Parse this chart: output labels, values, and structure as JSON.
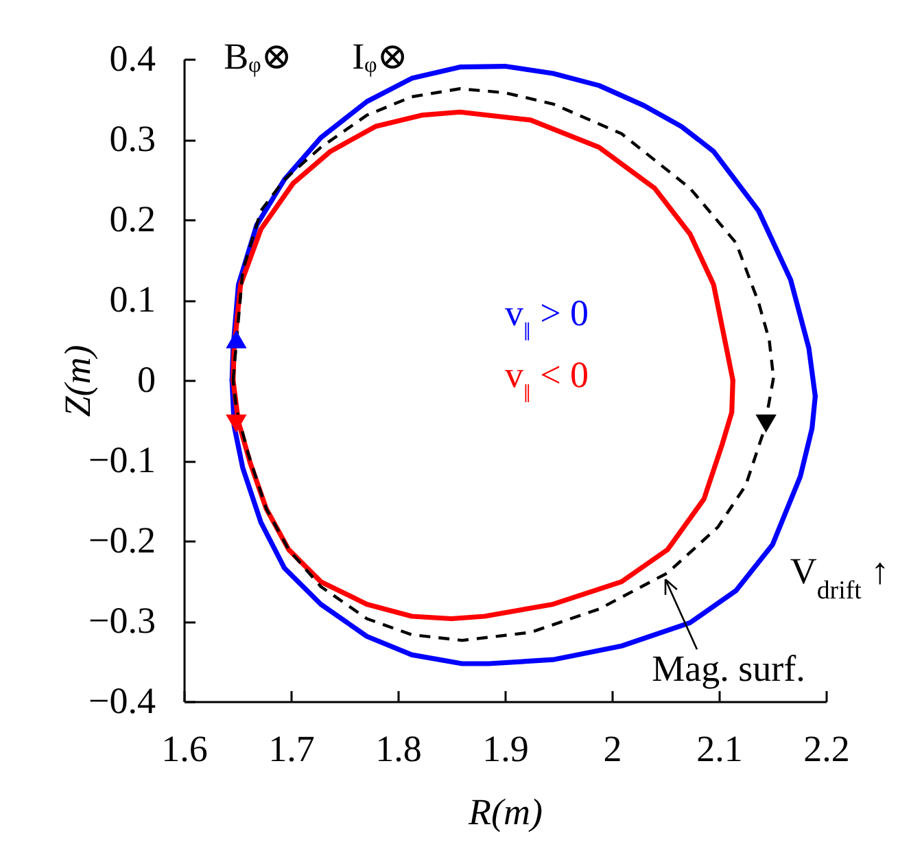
{
  "chart_data": {
    "type": "line",
    "xlabel": "R(m)",
    "ylabel": "Z(m)",
    "xlim": [
      1.6,
      2.2
    ],
    "xticks": [
      1.6,
      1.7,
      1.8,
      1.9,
      2,
      2.1,
      2.2
    ],
    "ylim": [
      -0.4,
      0.4
    ],
    "yticks": [
      -0.4,
      -0.3,
      -0.2,
      -0.1,
      0,
      0.1,
      0.2,
      0.3,
      0.4
    ],
    "grid": false,
    "series": [
      {
        "name": "v$_{‖}$ > 0",
        "color": "#0000ff",
        "x": [
          1.645,
          1.646,
          1.651,
          1.668,
          1.694,
          1.728,
          1.771,
          1.813,
          1.858,
          1.9,
          1.945,
          1.988,
          2.03,
          2.065,
          2.095,
          2.137,
          2.167,
          2.184,
          2.19
        ],
        "values": [
          0,
          0.04,
          0.119,
          0.193,
          0.25,
          0.302,
          0.347,
          0.376,
          0.39,
          0.391,
          0.382,
          0.367,
          0.342,
          0.316,
          0.285,
          0.211,
          0.125,
          0.04,
          -0.02
        ]
      },
      {
        "color": "#0000ff",
        "x": [
          2.19,
          2.187,
          2.176,
          2.15,
          2.116,
          2.073,
          2.009,
          1.945,
          1.885,
          1.86,
          1.813,
          1.771,
          1.728,
          1.694,
          1.672,
          1.655,
          1.647,
          1.645
        ],
        "values": [
          -0.02,
          -0.06,
          -0.12,
          -0.205,
          -0.262,
          -0.302,
          -0.331,
          -0.348,
          -0.353,
          -0.353,
          -0.342,
          -0.319,
          -0.279,
          -0.234,
          -0.177,
          -0.109,
          -0.057,
          0
        ]
      },
      {
        "name": "v$_{‖}$ < 0",
        "color": "#ff0000",
        "x": [
          1.646,
          1.647,
          1.653,
          1.672,
          1.702,
          1.737,
          1.779,
          1.822,
          1.858,
          1.924,
          1.988,
          2.04,
          2.073,
          2.095,
          2.107,
          2.113
        ],
        "values": [
          0,
          0.04,
          0.119,
          0.188,
          0.245,
          0.285,
          0.316,
          0.33,
          0.334,
          0.324,
          0.29,
          0.239,
          0.182,
          0.119,
          0.04,
          0
        ]
      },
      {
        "color": "#ff0000",
        "x": [
          2.113,
          2.112,
          2.103,
          2.086,
          2.052,
          2.009,
          1.945,
          1.881,
          1.85,
          1.813,
          1.771,
          1.728,
          1.698,
          1.677,
          1.662,
          1.651,
          1.646
        ],
        "values": [
          0,
          -0.04,
          -0.08,
          -0.148,
          -0.211,
          -0.251,
          -0.279,
          -0.294,
          -0.297,
          -0.294,
          -0.279,
          -0.251,
          -0.211,
          -0.16,
          -0.103,
          -0.052,
          0
        ]
      },
      {
        "color": "#000000",
        "line_style": "dashed",
        "x": [
          1.646,
          1.655,
          1.672,
          1.694,
          1.728,
          1.771,
          1.813,
          1.858,
          1.9,
          1.945,
          2.009,
          2.073,
          2.116,
          2.137,
          2.147,
          2.151
        ],
        "values": [
          0,
          0.136,
          0.211,
          0.25,
          0.29,
          0.33,
          0.353,
          0.363,
          0.358,
          0.344,
          0.307,
          0.239,
          0.171,
          0.097,
          0.05,
          0.003
        ]
      },
      {
        "color": "#000000",
        "line_style": "dashed",
        "x": [
          2.151,
          2.142,
          2.125,
          2.099,
          2.052,
          1.988,
          1.924,
          1.86,
          1.813,
          1.771,
          1.728,
          1.698,
          1.677,
          1.66,
          1.649,
          1.646
        ],
        "values": [
          0.003,
          -0.063,
          -0.131,
          -0.183,
          -0.24,
          -0.285,
          -0.314,
          -0.324,
          -0.317,
          -0.297,
          -0.257,
          -0.211,
          -0.16,
          -0.091,
          -0.035,
          0
        ]
      },
      {
        "type": "scatter",
        "marker": "triangle",
        "color": "#0000ff",
        "x": [
          1.649
        ],
        "values": [
          0.051
        ]
      },
      {
        "type": "scatter",
        "marker": "triangle-down",
        "color": "#ff0000",
        "x": [
          1.649
        ],
        "values": [
          -0.054
        ]
      },
      {
        "type": "scatter",
        "marker": "triangle-down",
        "color": "#000000",
        "x": [
          2.144
        ],
        "values": [
          -0.054
        ]
      }
    ],
    "annotations": [
      "Bᵩ⊗",
      "Iᵩ⊗",
      "V$_{drift}$ ↑",
      {
        "text": "Mag. surf.",
        "x": 2.05,
        "y": -0.248
      }
    ]
  }
}
